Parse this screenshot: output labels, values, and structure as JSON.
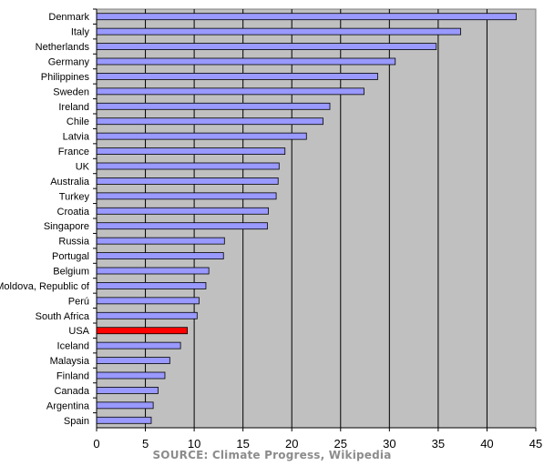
{
  "chart_data": {
    "type": "bar",
    "orientation": "horizontal",
    "categories": [
      "Denmark",
      "Italy",
      "Netherlands",
      "Germany",
      "Philippines",
      "Sweden",
      "Ireland",
      "Chile",
      "Latvia",
      "France",
      "UK",
      "Australia",
      "Turkey",
      "Croatia",
      "Singapore",
      "Russia",
      "Portugal",
      "Belgium",
      "Moldova, Republic of",
      "Perú",
      "South Africa",
      "USA",
      "Iceland",
      "Malaysia",
      "Finland",
      "Canada",
      "Argentina",
      "Spain"
    ],
    "values": [
      43.0,
      37.3,
      34.8,
      30.6,
      28.8,
      27.4,
      23.9,
      23.2,
      21.5,
      19.3,
      18.7,
      18.6,
      18.4,
      17.6,
      17.5,
      13.1,
      13.0,
      11.5,
      11.2,
      10.5,
      10.3,
      9.3,
      8.6,
      7.5,
      7.0,
      6.3,
      5.8,
      5.6
    ],
    "highlight": {
      "category": "USA",
      "color": "#ff0000"
    },
    "bar_color": "#9999ff",
    "plot_background": "#c0c0c0",
    "xlim": [
      0,
      45
    ],
    "xticks": [
      0,
      5,
      10,
      15,
      20,
      25,
      30,
      35,
      40,
      45
    ],
    "grid": "vertical",
    "title": "",
    "xlabel": "",
    "ylabel": ""
  },
  "source_text": "SOURCE: Climate Progress, Wikipedia"
}
